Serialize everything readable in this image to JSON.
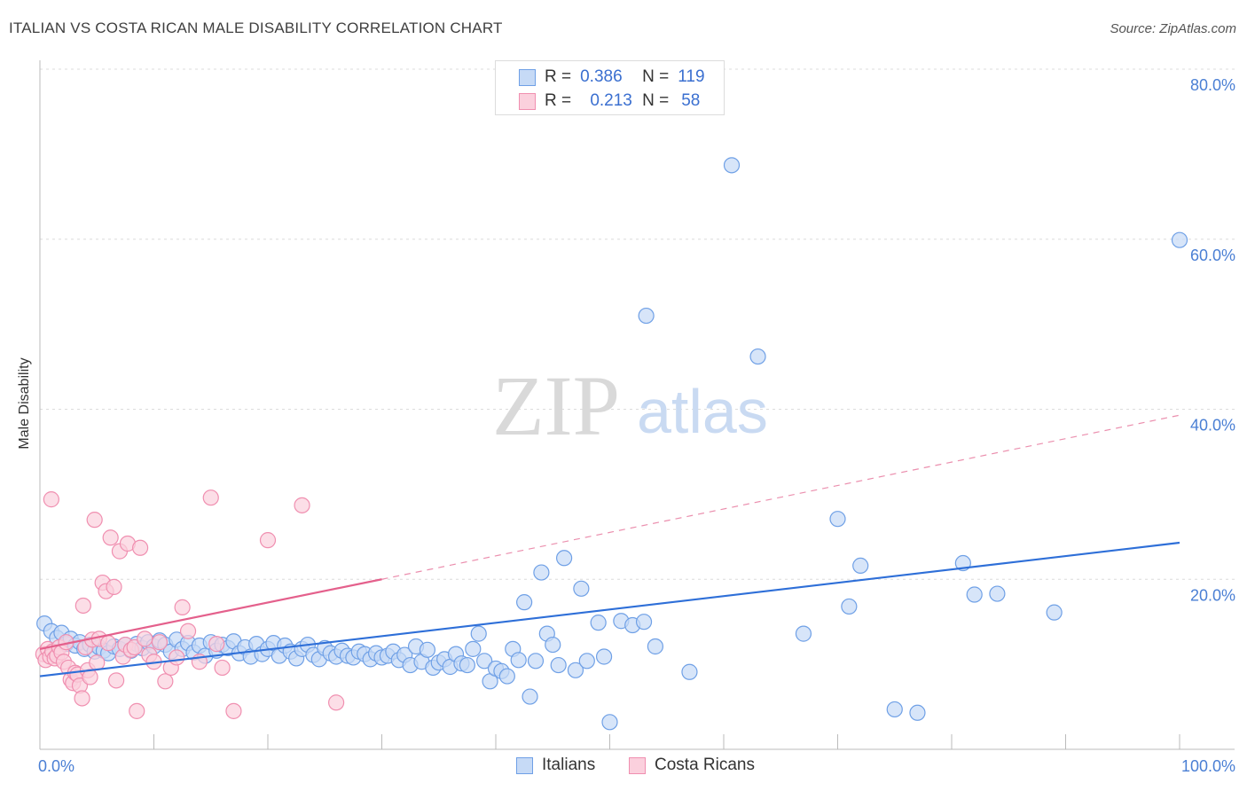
{
  "title": "ITALIAN VS COSTA RICAN MALE DISABILITY CORRELATION CHART",
  "source": "Source: ZipAtlas.com",
  "watermark": {
    "zip": "ZIP",
    "atlas": "atlas"
  },
  "legend": {
    "rows": [
      {
        "r_label": "R =",
        "r_value": "0.386",
        "n_label": "N =",
        "n_value": "119",
        "color": "#6fa0e6",
        "fill": "#c6daf6"
      },
      {
        "r_label": "R =",
        "r_value": "0.213",
        "n_label": "N =",
        "n_value": "58",
        "color": "#f08fb0",
        "fill": "#fbd0dd"
      }
    ]
  },
  "bottom_legend": [
    "Italians",
    "Costa Ricans"
  ],
  "chart_data": {
    "type": "scatter",
    "title": "ITALIAN VS COSTA RICAN MALE DISABILITY CORRELATION CHART",
    "xlabel": "",
    "ylabel": "Male Disability",
    "xlim": [
      0,
      100
    ],
    "ylim": [
      0,
      80
    ],
    "x_tick_labels": [
      "0.0%",
      "100.0%"
    ],
    "y_ticks": [
      20,
      40,
      60,
      80
    ],
    "y_tick_labels": [
      "20.0%",
      "40.0%",
      "60.0%",
      "80.0%"
    ],
    "grid": "horizontal dashed",
    "legend_position": "top-center",
    "series": [
      {
        "name": "Italians",
        "color": "#6fa0e6",
        "fill": "#c6daf6",
        "trend": {
          "x": [
            0,
            100
          ],
          "y": [
            8.6,
            24.3
          ],
          "style": "solid"
        },
        "points": [
          [
            0.4,
            14.8
          ],
          [
            1.0,
            13.9
          ],
          [
            1.5,
            13.1
          ],
          [
            1.9,
            13.7
          ],
          [
            2.3,
            12.4
          ],
          [
            2.7,
            13.0
          ],
          [
            3.1,
            12.2
          ],
          [
            3.5,
            12.6
          ],
          [
            3.9,
            11.8
          ],
          [
            4.4,
            12.3
          ],
          [
            4.8,
            11.5
          ],
          [
            5.2,
            12.0
          ],
          [
            5.6,
            11.6
          ],
          [
            6.0,
            11.3
          ],
          [
            6.5,
            12.1
          ],
          [
            7.0,
            11.8
          ],
          [
            7.5,
            12.3
          ],
          [
            8.0,
            11.6
          ],
          [
            8.5,
            12.4
          ],
          [
            9.0,
            11.9
          ],
          [
            9.5,
            12.6
          ],
          [
            10.0,
            12.1
          ],
          [
            10.5,
            12.8
          ],
          [
            11.0,
            12.3
          ],
          [
            11.5,
            11.5
          ],
          [
            12.0,
            12.9
          ],
          [
            12.5,
            11.8
          ],
          [
            13.0,
            12.5
          ],
          [
            13.5,
            11.4
          ],
          [
            14.0,
            12.2
          ],
          [
            14.5,
            11.0
          ],
          [
            15.0,
            12.6
          ],
          [
            15.5,
            11.6
          ],
          [
            16.0,
            12.3
          ],
          [
            16.5,
            11.9
          ],
          [
            17.0,
            12.7
          ],
          [
            17.5,
            11.3
          ],
          [
            18.0,
            12.0
          ],
          [
            18.5,
            10.9
          ],
          [
            19.0,
            12.4
          ],
          [
            19.5,
            11.2
          ],
          [
            20.0,
            11.8
          ],
          [
            20.5,
            12.5
          ],
          [
            21.0,
            11.0
          ],
          [
            21.5,
            12.2
          ],
          [
            22.0,
            11.5
          ],
          [
            22.5,
            10.7
          ],
          [
            23.0,
            11.8
          ],
          [
            23.5,
            12.3
          ],
          [
            24.0,
            11.1
          ],
          [
            24.5,
            10.6
          ],
          [
            25.0,
            11.9
          ],
          [
            25.5,
            11.3
          ],
          [
            26.0,
            10.9
          ],
          [
            26.5,
            11.6
          ],
          [
            27.0,
            11.0
          ],
          [
            27.5,
            10.8
          ],
          [
            28.0,
            11.5
          ],
          [
            28.5,
            11.2
          ],
          [
            29.0,
            10.6
          ],
          [
            29.5,
            11.3
          ],
          [
            30.0,
            10.8
          ],
          [
            30.5,
            11.0
          ],
          [
            31.0,
            11.5
          ],
          [
            31.5,
            10.5
          ],
          [
            32.0,
            11.1
          ],
          [
            32.5,
            9.9
          ],
          [
            33.0,
            12.1
          ],
          [
            33.5,
            10.3
          ],
          [
            34.0,
            11.7
          ],
          [
            34.5,
            9.6
          ],
          [
            35.0,
            10.2
          ],
          [
            35.5,
            10.6
          ],
          [
            36.0,
            9.7
          ],
          [
            36.5,
            11.2
          ],
          [
            37.0,
            10.1
          ],
          [
            37.5,
            9.9
          ],
          [
            38.0,
            11.8
          ],
          [
            38.5,
            13.6
          ],
          [
            39.0,
            10.4
          ],
          [
            39.5,
            8.0
          ],
          [
            40.0,
            9.5
          ],
          [
            40.5,
            9.2
          ],
          [
            41.0,
            8.6
          ],
          [
            41.5,
            11.8
          ],
          [
            42.0,
            10.5
          ],
          [
            42.5,
            17.3
          ],
          [
            43.0,
            6.2
          ],
          [
            43.5,
            10.4
          ],
          [
            44.0,
            20.8
          ],
          [
            44.5,
            13.6
          ],
          [
            45.0,
            12.3
          ],
          [
            45.5,
            9.9
          ],
          [
            46.0,
            22.5
          ],
          [
            47.0,
            9.3
          ],
          [
            47.5,
            18.9
          ],
          [
            48.0,
            10.4
          ],
          [
            49.0,
            14.9
          ],
          [
            49.5,
            10.9
          ],
          [
            50.0,
            3.2
          ],
          [
            51.0,
            15.1
          ],
          [
            52.0,
            14.6
          ],
          [
            53.0,
            15.0
          ],
          [
            53.2,
            51.0
          ],
          [
            54.0,
            12.1
          ],
          [
            57.0,
            9.1
          ],
          [
            60.7,
            68.7
          ],
          [
            63.0,
            46.2
          ],
          [
            67.0,
            13.6
          ],
          [
            70.0,
            27.1
          ],
          [
            71.0,
            16.8
          ],
          [
            72.0,
            21.6
          ],
          [
            75.0,
            4.7
          ],
          [
            77.0,
            4.3
          ],
          [
            81.0,
            21.9
          ],
          [
            82.0,
            18.2
          ],
          [
            84.0,
            18.3
          ],
          [
            89.0,
            16.1
          ],
          [
            100.0,
            59.9
          ]
        ]
      },
      {
        "name": "Costa Ricans",
        "color": "#f08fb0",
        "fill": "#fbd0dd",
        "trend": {
          "x": [
            0,
            30
          ],
          "y": [
            11.8,
            20.0
          ],
          "x_extended": [
            30,
            100
          ],
          "y_extended": [
            20.0,
            39.3
          ],
          "style": "solid then dashed"
        },
        "points": [
          [
            0.3,
            11.2
          ],
          [
            0.5,
            10.5
          ],
          [
            0.7,
            11.8
          ],
          [
            0.9,
            10.9
          ],
          [
            1.1,
            11.5
          ],
          [
            1.3,
            10.7
          ],
          [
            1.5,
            11.0
          ],
          [
            1.7,
            12.0
          ],
          [
            1.9,
            11.4
          ],
          [
            2.1,
            10.3
          ],
          [
            2.3,
            12.6
          ],
          [
            2.5,
            9.6
          ],
          [
            2.7,
            8.2
          ],
          [
            2.9,
            7.8
          ],
          [
            3.1,
            9.0
          ],
          [
            3.3,
            8.8
          ],
          [
            3.5,
            7.5
          ],
          [
            3.7,
            6.0
          ],
          [
            3.8,
            16.9
          ],
          [
            4.0,
            12.0
          ],
          [
            4.2,
            9.3
          ],
          [
            4.4,
            8.5
          ],
          [
            4.6,
            12.9
          ],
          [
            4.8,
            27.0
          ],
          [
            5.0,
            10.2
          ],
          [
            5.2,
            13.0
          ],
          [
            5.5,
            19.6
          ],
          [
            5.8,
            18.6
          ],
          [
            6.0,
            12.5
          ],
          [
            6.2,
            24.9
          ],
          [
            6.5,
            19.1
          ],
          [
            6.7,
            8.1
          ],
          [
            7.0,
            23.3
          ],
          [
            7.3,
            10.9
          ],
          [
            7.5,
            12.3
          ],
          [
            7.7,
            24.2
          ],
          [
            8.0,
            11.7
          ],
          [
            8.3,
            12.0
          ],
          [
            8.5,
            4.5
          ],
          [
            8.8,
            23.7
          ],
          [
            9.2,
            13.0
          ],
          [
            9.6,
            11.1
          ],
          [
            10.0,
            10.3
          ],
          [
            10.5,
            12.6
          ],
          [
            11.0,
            8.0
          ],
          [
            11.5,
            9.6
          ],
          [
            12.0,
            10.8
          ],
          [
            12.5,
            16.7
          ],
          [
            13.0,
            13.9
          ],
          [
            14.0,
            10.3
          ],
          [
            15.0,
            29.6
          ],
          [
            15.5,
            12.4
          ],
          [
            16.0,
            9.6
          ],
          [
            17.0,
            4.5
          ],
          [
            20.0,
            24.6
          ],
          [
            23.0,
            28.7
          ],
          [
            26.0,
            5.5
          ],
          [
            1.0,
            29.4
          ]
        ]
      }
    ]
  }
}
